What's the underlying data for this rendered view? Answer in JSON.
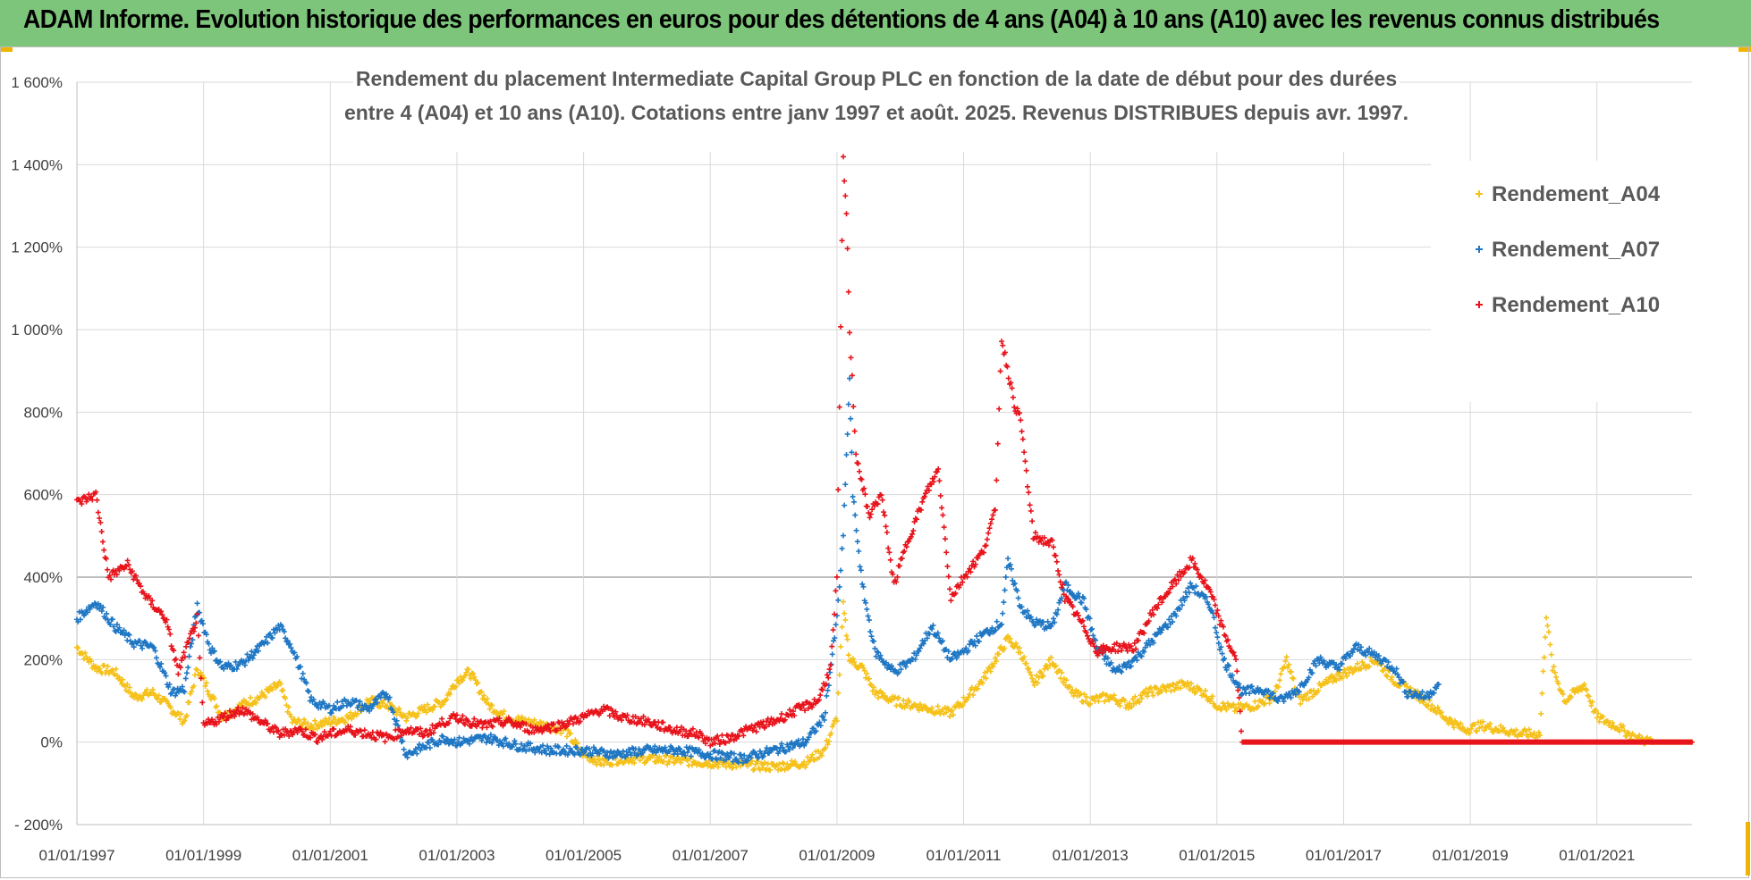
{
  "banner": {
    "title": "ADAM Informe. Evolution historique des performances en euros pour des détentions de 4 ans (A04) à 10 ans (A10) avec les revenus connus distribués"
  },
  "colors": {
    "banner_bg": "#7dc57a",
    "accent_orange": "#f0b400",
    "A04": "#f5c11a",
    "A07": "#1f77c4",
    "A10": "#e8141c",
    "grid": "#d9d9d9"
  },
  "chart_data": {
    "type": "scatter",
    "title_lines": [
      "Rendement du placement Intermediate Capital Group PLC en fonction de la date de début pour des durées",
      "entre 4 (A04) et 10 ans (A10).  Cotations entre janv 1997 et août. 2025. Revenus DISTRIBUES depuis avr. 1997."
    ],
    "xlabel": "",
    "ylabel": "",
    "x_tick_labels": [
      "01/01/1997",
      "01/01/1999",
      "01/01/2001",
      "01/01/2003",
      "01/01/2005",
      "01/01/2007",
      "01/01/2009",
      "01/01/2011",
      "01/01/2013",
      "01/01/2015",
      "01/01/2017",
      "01/01/2019",
      "01/01/2021"
    ],
    "x_range": [
      "01/01/1997",
      "01/07/2022"
    ],
    "y_tick_labels": [
      "- 200%",
      "0%",
      "200%",
      "400%",
      "600%",
      "800%",
      "1 000%",
      "1 200%",
      "1 400%",
      "1 600%"
    ],
    "ylim": [
      -200,
      1600
    ],
    "grid": true,
    "legend_position": "top-right",
    "series": [
      {
        "name": "Rendement_A04",
        "color": "#f5c11a",
        "points": [
          [
            1997.0,
            230
          ],
          [
            1997.3,
            180
          ],
          [
            1997.6,
            170
          ],
          [
            1997.9,
            110
          ],
          [
            1998.2,
            120
          ],
          [
            1998.5,
            80
          ],
          [
            1998.7,
            50
          ],
          [
            1998.9,
            180
          ],
          [
            1999.1,
            120
          ],
          [
            1999.3,
            60
          ],
          [
            1999.6,
            90
          ],
          [
            1999.9,
            110
          ],
          [
            2000.2,
            140
          ],
          [
            2000.4,
            50
          ],
          [
            2000.7,
            40
          ],
          [
            2001.0,
            50
          ],
          [
            2001.3,
            60
          ],
          [
            2001.6,
            100
          ],
          [
            2001.9,
            90
          ],
          [
            2002.2,
            60
          ],
          [
            2002.5,
            80
          ],
          [
            2002.8,
            100
          ],
          [
            2003.0,
            150
          ],
          [
            2003.2,
            170
          ],
          [
            2003.5,
            90
          ],
          [
            2003.8,
            60
          ],
          [
            2004.1,
            50
          ],
          [
            2004.4,
            40
          ],
          [
            2004.7,
            30
          ],
          [
            2005.0,
            -30
          ],
          [
            2005.3,
            -50
          ],
          [
            2005.6,
            -40
          ],
          [
            2006.0,
            -40
          ],
          [
            2006.5,
            -45
          ],
          [
            2007.0,
            -50
          ],
          [
            2007.5,
            -55
          ],
          [
            2008.0,
            -60
          ],
          [
            2008.5,
            -50
          ],
          [
            2008.8,
            -20
          ],
          [
            2009.0,
            60
          ],
          [
            2009.1,
            330
          ],
          [
            2009.2,
            200
          ],
          [
            2009.4,
            180
          ],
          [
            2009.6,
            120
          ],
          [
            2009.9,
            100
          ],
          [
            2010.2,
            90
          ],
          [
            2010.5,
            80
          ],
          [
            2010.8,
            70
          ],
          [
            2011.0,
            100
          ],
          [
            2011.3,
            150
          ],
          [
            2011.5,
            200
          ],
          [
            2011.7,
            250
          ],
          [
            2011.9,
            220
          ],
          [
            2012.1,
            140
          ],
          [
            2012.4,
            200
          ],
          [
            2012.7,
            120
          ],
          [
            2013.0,
            100
          ],
          [
            2013.3,
            110
          ],
          [
            2013.6,
            90
          ],
          [
            2013.9,
            120
          ],
          [
            2014.2,
            130
          ],
          [
            2014.5,
            140
          ],
          [
            2014.8,
            120
          ],
          [
            2015.0,
            90
          ],
          [
            2015.3,
            80
          ],
          [
            2015.6,
            90
          ],
          [
            2015.9,
            110
          ],
          [
            2016.1,
            200
          ],
          [
            2016.3,
            100
          ],
          [
            2016.6,
            130
          ],
          [
            2016.9,
            160
          ],
          [
            2017.2,
            180
          ],
          [
            2017.5,
            200
          ],
          [
            2017.8,
            150
          ],
          [
            2018.0,
            130
          ],
          [
            2018.3,
            100
          ],
          [
            2018.6,
            60
          ],
          [
            2018.9,
            30
          ],
          [
            2019.2,
            40
          ],
          [
            2019.5,
            30
          ],
          [
            2019.8,
            20
          ],
          [
            2020.1,
            20
          ],
          [
            2020.2,
            310
          ],
          [
            2020.3,
            180
          ],
          [
            2020.5,
            100
          ],
          [
            2020.8,
            140
          ],
          [
            2021.0,
            60
          ],
          [
            2021.3,
            40
          ],
          [
            2021.6,
            10
          ],
          [
            2021.9,
            0
          ],
          [
            2022.3,
            0
          ],
          [
            2022.5,
            0
          ]
        ]
      },
      {
        "name": "Rendement_A07",
        "color": "#1f77c4",
        "points": [
          [
            1997.0,
            300
          ],
          [
            1997.3,
            340
          ],
          [
            1997.6,
            280
          ],
          [
            1997.9,
            240
          ],
          [
            1998.2,
            230
          ],
          [
            1998.5,
            120
          ],
          [
            1998.7,
            130
          ],
          [
            1998.9,
            330
          ],
          [
            1999.1,
            230
          ],
          [
            1999.3,
            180
          ],
          [
            1999.6,
            190
          ],
          [
            1999.9,
            230
          ],
          [
            2000.2,
            280
          ],
          [
            2000.4,
            230
          ],
          [
            2000.7,
            100
          ],
          [
            2001.0,
            80
          ],
          [
            2001.3,
            100
          ],
          [
            2001.6,
            80
          ],
          [
            2001.9,
            120
          ],
          [
            2002.2,
            -30
          ],
          [
            2002.5,
            -10
          ],
          [
            2002.8,
            10
          ],
          [
            2003.0,
            0
          ],
          [
            2003.5,
            10
          ],
          [
            2004.0,
            -10
          ],
          [
            2004.5,
            -20
          ],
          [
            2005.0,
            -20
          ],
          [
            2005.5,
            -30
          ],
          [
            2006.0,
            -20
          ],
          [
            2006.5,
            -20
          ],
          [
            2007.0,
            -30
          ],
          [
            2007.5,
            -40
          ],
          [
            2008.0,
            -20
          ],
          [
            2008.5,
            0
          ],
          [
            2008.8,
            60
          ],
          [
            2009.0,
            300
          ],
          [
            2009.1,
            500
          ],
          [
            2009.2,
            880
          ],
          [
            2009.25,
            600
          ],
          [
            2009.4,
            380
          ],
          [
            2009.6,
            220
          ],
          [
            2009.9,
            170
          ],
          [
            2010.2,
            200
          ],
          [
            2010.5,
            280
          ],
          [
            2010.8,
            200
          ],
          [
            2011.0,
            220
          ],
          [
            2011.3,
            260
          ],
          [
            2011.6,
            290
          ],
          [
            2011.7,
            440
          ],
          [
            2011.9,
            330
          ],
          [
            2012.1,
            290
          ],
          [
            2012.4,
            280
          ],
          [
            2012.6,
            380
          ],
          [
            2012.9,
            340
          ],
          [
            2013.1,
            230
          ],
          [
            2013.4,
            170
          ],
          [
            2013.7,
            200
          ],
          [
            2014.0,
            250
          ],
          [
            2014.3,
            300
          ],
          [
            2014.6,
            380
          ],
          [
            2014.9,
            330
          ],
          [
            2015.1,
            200
          ],
          [
            2015.4,
            120
          ],
          [
            2015.7,
            130
          ],
          [
            2016.0,
            100
          ],
          [
            2016.3,
            130
          ],
          [
            2016.6,
            200
          ],
          [
            2016.9,
            180
          ],
          [
            2017.2,
            230
          ],
          [
            2017.5,
            210
          ],
          [
            2017.8,
            180
          ],
          [
            2018.0,
            120
          ],
          [
            2018.3,
            110
          ],
          [
            2018.5,
            140
          ]
        ]
      },
      {
        "name": "Rendement_A10",
        "color": "#e8141c",
        "points": [
          [
            1997.0,
            580
          ],
          [
            1997.3,
            600
          ],
          [
            1997.5,
            400
          ],
          [
            1997.8,
            430
          ],
          [
            1998.1,
            350
          ],
          [
            1998.4,
            300
          ],
          [
            1998.6,
            170
          ],
          [
            1998.9,
            300
          ],
          [
            1999.0,
            40
          ],
          [
            1999.3,
            60
          ],
          [
            1999.6,
            80
          ],
          [
            1999.9,
            50
          ],
          [
            2000.2,
            20
          ],
          [
            2000.5,
            30
          ],
          [
            2000.8,
            10
          ],
          [
            2001.0,
            20
          ],
          [
            2001.3,
            30
          ],
          [
            2001.6,
            20
          ],
          [
            2001.9,
            10
          ],
          [
            2002.2,
            30
          ],
          [
            2002.5,
            20
          ],
          [
            2002.8,
            50
          ],
          [
            2003.0,
            60
          ],
          [
            2003.4,
            40
          ],
          [
            2003.8,
            50
          ],
          [
            2004.2,
            30
          ],
          [
            2004.6,
            40
          ],
          [
            2005.0,
            60
          ],
          [
            2005.3,
            80
          ],
          [
            2005.6,
            60
          ],
          [
            2006.0,
            50
          ],
          [
            2006.4,
            30
          ],
          [
            2006.8,
            20
          ],
          [
            2007.0,
            0
          ],
          [
            2007.3,
            10
          ],
          [
            2007.6,
            30
          ],
          [
            2008.0,
            50
          ],
          [
            2008.4,
            80
          ],
          [
            2008.7,
            100
          ],
          [
            2008.9,
            180
          ],
          [
            2009.0,
            400
          ],
          [
            2009.1,
            1410
          ],
          [
            2009.15,
            1280
          ],
          [
            2009.2,
            1000
          ],
          [
            2009.3,
            700
          ],
          [
            2009.5,
            550
          ],
          [
            2009.7,
            600
          ],
          [
            2009.9,
            380
          ],
          [
            2010.1,
            480
          ],
          [
            2010.4,
            600
          ],
          [
            2010.6,
            660
          ],
          [
            2010.8,
            350
          ],
          [
            2011.0,
            400
          ],
          [
            2011.3,
            460
          ],
          [
            2011.5,
            560
          ],
          [
            2011.6,
            980
          ],
          [
            2011.8,
            820
          ],
          [
            2011.9,
            780
          ],
          [
            2012.1,
            500
          ],
          [
            2012.4,
            480
          ],
          [
            2012.6,
            350
          ],
          [
            2012.9,
            280
          ],
          [
            2013.1,
            220
          ],
          [
            2013.4,
            230
          ],
          [
            2013.7,
            230
          ],
          [
            2014.0,
            320
          ],
          [
            2014.3,
            380
          ],
          [
            2014.6,
            440
          ],
          [
            2014.9,
            360
          ],
          [
            2015.1,
            270
          ],
          [
            2015.3,
            200
          ],
          [
            2015.4,
            0
          ],
          [
            2016.0,
            0
          ],
          [
            2017.0,
            0
          ],
          [
            2018.0,
            0
          ],
          [
            2019.0,
            0
          ],
          [
            2020.0,
            0
          ],
          [
            2021.0,
            0
          ],
          [
            2022.0,
            0
          ],
          [
            2022.5,
            0
          ]
        ]
      }
    ]
  }
}
